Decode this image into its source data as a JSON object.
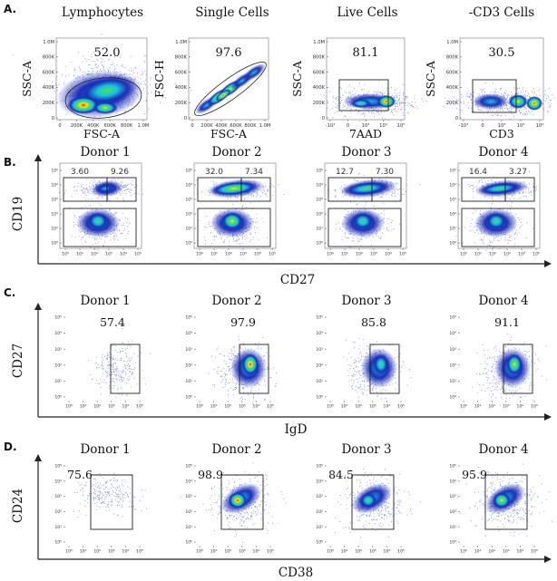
{
  "figure": {
    "panels": {
      "A": {
        "label": "A.",
        "plots": [
          {
            "title": "Lymphocytes",
            "value": "52.0",
            "ylabel": "SSC-A",
            "xlabel": "FSC-A",
            "yticks": [
              "1.0M",
              "800K",
              "600K",
              "400K",
              "200K",
              "0"
            ],
            "xticks": [
              "0",
              "200K",
              "400K",
              "600K",
              "800K",
              "1.0M"
            ]
          },
          {
            "title": "Single Cells",
            "value": "97.6",
            "ylabel": "FSC-H",
            "xlabel": "FSC-A",
            "yticks": [
              "1.0M",
              "800K",
              "600K",
              "400K",
              "200K",
              "0"
            ],
            "xticks": [
              "0",
              "200K",
              "400K",
              "600K",
              "800K",
              "1.0M"
            ]
          },
          {
            "title": "Live Cells",
            "value": "81.1",
            "ylabel": "SSC-A",
            "xlabel": "7AAD",
            "yticks": [
              "1.0M",
              "800K",
              "600K",
              "400K",
              "200K",
              "0"
            ],
            "xticks": [
              "-10³",
              "0",
              "10³",
              "10⁴",
              "10⁵"
            ]
          },
          {
            "title": "-CD3 Cells",
            "value": "30.5",
            "ylabel": "SSC-A",
            "xlabel": "CD3",
            "yticks": [
              "1.0M",
              "800K",
              "600K",
              "400K",
              "200K",
              "0"
            ],
            "xticks": [
              "-10³",
              "0",
              "10³",
              "10⁴",
              "10⁵"
            ]
          }
        ]
      },
      "B": {
        "label": "B.",
        "ylabel": "CD19",
        "xlabel": "CD27",
        "titles": [
          "Donor 1",
          "Donor 2",
          "Donor 3",
          "Donor 4"
        ],
        "left_values": [
          "3.60",
          "32.0",
          "12.7",
          "16.4"
        ],
        "right_values": [
          "9.26",
          "7.34",
          "7.30",
          "3.27"
        ]
      },
      "C": {
        "label": "C.",
        "ylabel": "CD27",
        "xlabel": "IgD",
        "titles": [
          "Donor 1",
          "Donor 2",
          "Donor 3",
          "Donor 4"
        ],
        "values": [
          "57.4",
          "97.9",
          "85.8",
          "91.1"
        ]
      },
      "D": {
        "label": "D.",
        "ylabel": "CD24",
        "xlabel": "CD38",
        "titles": [
          "Donor 1",
          "Donor 2",
          "Donor 3",
          "Donor 4"
        ],
        "values": [
          "75.6",
          "98.9",
          "84.5",
          "95.9"
        ]
      }
    },
    "log_ticks": [
      "10⁰",
      "10¹",
      "10²",
      "10³",
      "10⁴",
      "10⁵"
    ],
    "colors": {
      "low": "#1c2fb8",
      "mid": "#16c4e0",
      "midhigh": "#4fe04a",
      "high": "#ffe21a",
      "peak": "#e8201c"
    }
  }
}
